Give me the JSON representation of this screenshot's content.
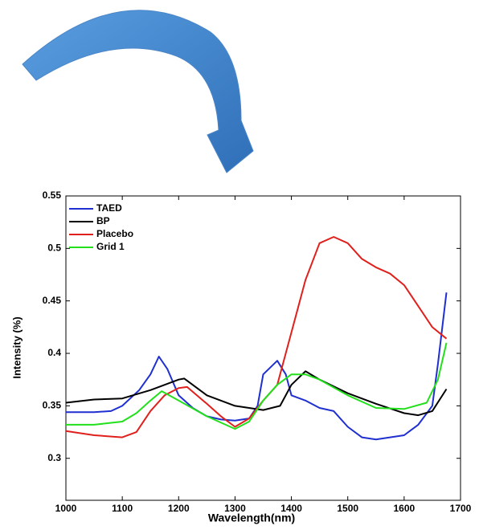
{
  "chart_data": {
    "type": "line",
    "xlabel": "Wavelength(nm)",
    "ylabel": "Intensity (%)",
    "xlim": [
      1000,
      1700
    ],
    "xticks": [
      1000,
      1100,
      1200,
      1300,
      1400,
      1500,
      1600,
      1700
    ],
    "ylim": [
      0.26,
      0.55
    ],
    "yticks": [
      0.3,
      0.35,
      0.4,
      0.45,
      0.5,
      0.55
    ],
    "legend": "upper-left",
    "series": [
      {
        "name": "TAED",
        "color": "#1f2fd0",
        "x": [
          1000,
          1050,
          1080,
          1100,
          1130,
          1150,
          1165,
          1180,
          1200,
          1225,
          1250,
          1275,
          1300,
          1325,
          1340,
          1350,
          1375,
          1390,
          1400,
          1425,
          1450,
          1475,
          1500,
          1525,
          1550,
          1575,
          1600,
          1625,
          1650,
          1660,
          1675
        ],
        "values": [
          0.344,
          0.344,
          0.345,
          0.35,
          0.365,
          0.38,
          0.397,
          0.385,
          0.36,
          0.348,
          0.34,
          0.337,
          0.336,
          0.338,
          0.35,
          0.38,
          0.393,
          0.38,
          0.36,
          0.355,
          0.348,
          0.345,
          0.33,
          0.32,
          0.318,
          0.32,
          0.322,
          0.332,
          0.35,
          0.39,
          0.458
        ]
      },
      {
        "name": "BP",
        "color": "#000000",
        "x": [
          1000,
          1050,
          1100,
          1150,
          1200,
          1210,
          1250,
          1300,
          1350,
          1380,
          1400,
          1425,
          1450,
          1500,
          1550,
          1600,
          1625,
          1650,
          1675
        ],
        "values": [
          0.353,
          0.356,
          0.357,
          0.365,
          0.375,
          0.376,
          0.36,
          0.35,
          0.346,
          0.35,
          0.37,
          0.383,
          0.375,
          0.362,
          0.352,
          0.343,
          0.341,
          0.345,
          0.366
        ]
      },
      {
        "name": "Placebo",
        "color": "#e0201c",
        "x": [
          1000,
          1050,
          1100,
          1125,
          1150,
          1175,
          1200,
          1215,
          1250,
          1275,
          1300,
          1325,
          1350,
          1375,
          1400,
          1425,
          1450,
          1475,
          1500,
          1525,
          1550,
          1575,
          1600,
          1625,
          1650,
          1675
        ],
        "values": [
          0.326,
          0.322,
          0.32,
          0.325,
          0.345,
          0.36,
          0.367,
          0.368,
          0.352,
          0.34,
          0.33,
          0.338,
          0.355,
          0.37,
          0.42,
          0.47,
          0.505,
          0.511,
          0.505,
          0.49,
          0.482,
          0.476,
          0.465,
          0.445,
          0.425,
          0.414
        ]
      },
      {
        "name": "Grid 1",
        "color": "#22e01c",
        "x": [
          1000,
          1050,
          1100,
          1125,
          1150,
          1170,
          1200,
          1250,
          1300,
          1325,
          1350,
          1375,
          1400,
          1425,
          1450,
          1500,
          1550,
          1600,
          1640,
          1660,
          1675
        ],
        "values": [
          0.332,
          0.332,
          0.335,
          0.343,
          0.355,
          0.364,
          0.355,
          0.34,
          0.328,
          0.335,
          0.355,
          0.37,
          0.38,
          0.38,
          0.375,
          0.36,
          0.348,
          0.347,
          0.353,
          0.375,
          0.41
        ]
      }
    ]
  }
}
